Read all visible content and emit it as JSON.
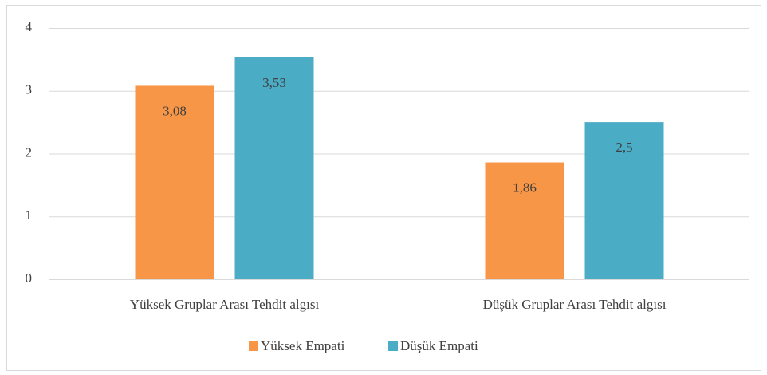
{
  "chart_data": {
    "type": "bar",
    "categories": [
      "Yüksek Gruplar Arası Tehdit algısı",
      "Düşük Gruplar Arası Tehdit algısı"
    ],
    "series": [
      {
        "name": "Yüksek Empati",
        "color": "#f79646",
        "values": [
          3.08,
          1.86
        ],
        "value_labels": [
          "3,08",
          "1,86"
        ]
      },
      {
        "name": "Düşük Empati",
        "color": "#4bacc6",
        "values": [
          3.53,
          2.5
        ],
        "value_labels": [
          "3,53",
          "2,5"
        ]
      }
    ],
    "ylim": [
      0,
      4
    ],
    "yticks": [
      0,
      1,
      2,
      3,
      4
    ],
    "grid": true,
    "legend": "bottom"
  }
}
